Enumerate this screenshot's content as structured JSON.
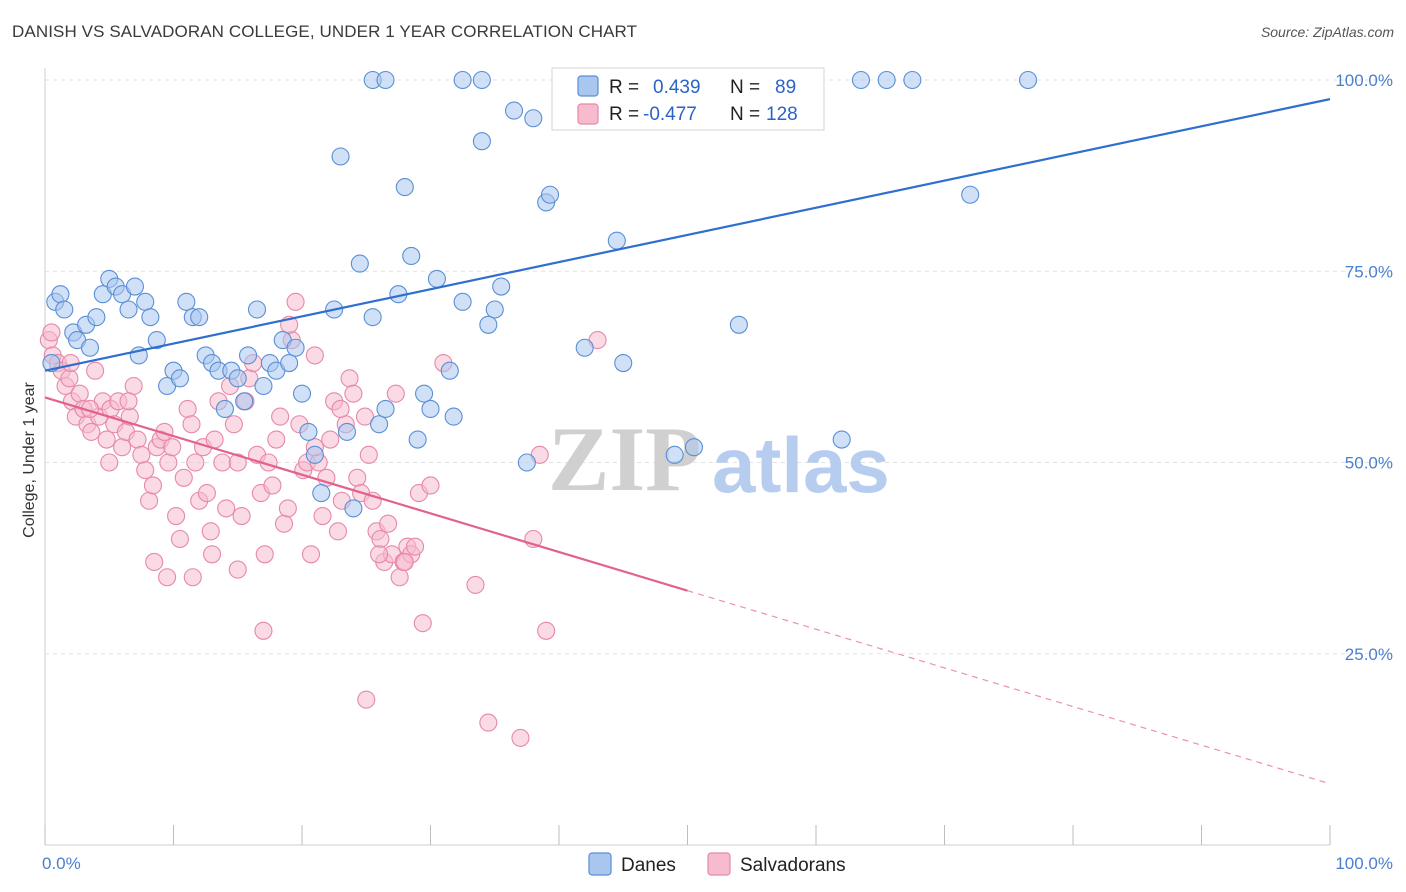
{
  "title": "DANISH VS SALVADORAN COLLEGE, UNDER 1 YEAR CORRELATION CHART",
  "source": "Source: ZipAtlas.com",
  "watermark": {
    "left": "ZIP",
    "right": "atlas"
  },
  "colors": {
    "danes_fill": "#a9c6ee",
    "danes_stroke": "#5a8fd6",
    "danes_line": "#2f6fcf",
    "salv_fill": "#f6bccd",
    "salv_stroke": "#e888a8",
    "salv_line": "#e2628f",
    "grid": "#e2e2e2",
    "tick_label": "#4a7fd0"
  },
  "legend": {
    "rows": [
      {
        "r_label": "R =",
        "r_value": "0.439",
        "n_label": "N =",
        "n_value": "89"
      },
      {
        "r_label": "R =",
        "r_value": "-0.477",
        "n_label": "N =",
        "n_value": "128"
      }
    ]
  },
  "bottom_legend": {
    "danes": "Danes",
    "salvadorans": "Salvadorans"
  },
  "chart_data": {
    "type": "scatter",
    "title": "DANISH VS SALVADORAN COLLEGE, UNDER 1 YEAR CORRELATION CHART",
    "xlabel": "",
    "ylabel": "College, Under 1 year",
    "xlim": [
      0,
      100
    ],
    "ylim": [
      0,
      104
    ],
    "x_tick_labels": [
      "0.0%",
      "100.0%"
    ],
    "y_tick_labels": [
      "25.0%",
      "50.0%",
      "75.0%",
      "100.0%"
    ],
    "y_ticks": [
      25,
      50,
      75,
      100
    ],
    "grid": true,
    "legend_position": "top-center",
    "series": [
      {
        "name": "Danes",
        "R": 0.439,
        "N": 89,
        "trend": {
          "x": [
            0,
            100
          ],
          "y": [
            62.0,
            97.5
          ]
        },
        "points": [
          [
            0.5,
            63
          ],
          [
            0.8,
            71
          ],
          [
            1.2,
            72
          ],
          [
            1.5,
            70
          ],
          [
            2.2,
            67
          ],
          [
            2.5,
            66
          ],
          [
            3.2,
            68
          ],
          [
            3.5,
            65
          ],
          [
            4.0,
            69
          ],
          [
            4.5,
            72
          ],
          [
            5.0,
            74
          ],
          [
            5.5,
            73
          ],
          [
            6.0,
            72
          ],
          [
            6.5,
            70
          ],
          [
            7.0,
            73
          ],
          [
            7.3,
            64
          ],
          [
            7.8,
            71
          ],
          [
            8.2,
            69
          ],
          [
            8.7,
            66
          ],
          [
            9.5,
            60
          ],
          [
            10.0,
            62
          ],
          [
            10.5,
            61
          ],
          [
            11.0,
            71
          ],
          [
            11.5,
            69
          ],
          [
            12.0,
            69
          ],
          [
            12.5,
            64
          ],
          [
            13.0,
            63
          ],
          [
            13.5,
            62
          ],
          [
            14.0,
            57
          ],
          [
            14.5,
            62
          ],
          [
            15.0,
            61
          ],
          [
            15.5,
            58
          ],
          [
            15.8,
            64
          ],
          [
            16.5,
            70
          ],
          [
            17.0,
            60
          ],
          [
            17.5,
            63
          ],
          [
            18.0,
            62
          ],
          [
            18.5,
            66
          ],
          [
            19.0,
            63
          ],
          [
            19.5,
            65
          ],
          [
            20.0,
            59
          ],
          [
            20.5,
            54
          ],
          [
            21.0,
            51
          ],
          [
            21.5,
            46
          ],
          [
            22.5,
            70
          ],
          [
            23.0,
            90
          ],
          [
            23.5,
            54
          ],
          [
            24.0,
            44
          ],
          [
            24.5,
            76
          ],
          [
            25.5,
            69
          ],
          [
            26.0,
            55
          ],
          [
            26.5,
            57
          ],
          [
            27.5,
            72
          ],
          [
            28.0,
            86
          ],
          [
            28.5,
            77
          ],
          [
            29.0,
            53
          ],
          [
            29.5,
            59
          ],
          [
            30.0,
            57
          ],
          [
            30.5,
            74
          ],
          [
            31.5,
            62
          ],
          [
            31.8,
            56
          ],
          [
            32.5,
            71
          ],
          [
            34.0,
            92
          ],
          [
            34.5,
            68
          ],
          [
            35.0,
            70
          ],
          [
            35.5,
            73
          ],
          [
            36.5,
            96
          ],
          [
            37.5,
            50
          ],
          [
            38.0,
            95
          ],
          [
            39.0,
            84
          ],
          [
            39.3,
            85
          ],
          [
            42.0,
            65
          ],
          [
            44.5,
            79
          ],
          [
            45.0,
            63
          ],
          [
            49.0,
            51
          ],
          [
            50.5,
            52
          ],
          [
            54.0,
            68
          ],
          [
            62.0,
            53
          ],
          [
            72.0,
            85
          ],
          [
            25.5,
            100
          ],
          [
            26.5,
            100
          ],
          [
            32.5,
            100
          ],
          [
            34.0,
            100
          ],
          [
            63.5,
            100
          ],
          [
            65.5,
            100
          ],
          [
            67.5,
            100
          ],
          [
            76.5,
            100
          ]
        ]
      },
      {
        "name": "Salvadorans",
        "R": -0.477,
        "N": 128,
        "trend": {
          "x": [
            0,
            100
          ],
          "y": [
            58.5,
            8.0
          ],
          "solid_until_x": 50
        },
        "points": [
          [
            0.3,
            66
          ],
          [
            0.6,
            64
          ],
          [
            1.0,
            63
          ],
          [
            1.3,
            62
          ],
          [
            1.6,
            60
          ],
          [
            1.9,
            61
          ],
          [
            2.1,
            58
          ],
          [
            2.4,
            56
          ],
          [
            2.7,
            59
          ],
          [
            3.0,
            57
          ],
          [
            3.3,
            55
          ],
          [
            3.6,
            54
          ],
          [
            3.9,
            62
          ],
          [
            4.2,
            56
          ],
          [
            4.5,
            58
          ],
          [
            4.8,
            53
          ],
          [
            5.1,
            57
          ],
          [
            5.4,
            55
          ],
          [
            5.7,
            58
          ],
          [
            6.0,
            52
          ],
          [
            6.3,
            54
          ],
          [
            6.6,
            56
          ],
          [
            6.9,
            60
          ],
          [
            7.2,
            53
          ],
          [
            7.5,
            51
          ],
          [
            7.8,
            49
          ],
          [
            8.1,
            45
          ],
          [
            8.4,
            47
          ],
          [
            8.7,
            52
          ],
          [
            9.0,
            53
          ],
          [
            9.3,
            54
          ],
          [
            9.6,
            50
          ],
          [
            9.9,
            52
          ],
          [
            10.2,
            43
          ],
          [
            10.5,
            40
          ],
          [
            10.8,
            48
          ],
          [
            11.1,
            57
          ],
          [
            11.4,
            55
          ],
          [
            11.7,
            50
          ],
          [
            12.0,
            45
          ],
          [
            12.3,
            52
          ],
          [
            12.6,
            46
          ],
          [
            12.9,
            41
          ],
          [
            13.2,
            53
          ],
          [
            13.5,
            58
          ],
          [
            13.8,
            50
          ],
          [
            14.1,
            44
          ],
          [
            14.4,
            60
          ],
          [
            14.7,
            55
          ],
          [
            15.0,
            50
          ],
          [
            15.3,
            43
          ],
          [
            15.6,
            58
          ],
          [
            15.9,
            61
          ],
          [
            16.2,
            63
          ],
          [
            16.5,
            51
          ],
          [
            16.8,
            46
          ],
          [
            17.1,
            38
          ],
          [
            17.4,
            50
          ],
          [
            17.7,
            47
          ],
          [
            18.0,
            53
          ],
          [
            18.3,
            56
          ],
          [
            18.6,
            42
          ],
          [
            18.9,
            44
          ],
          [
            19.2,
            66
          ],
          [
            19.5,
            71
          ],
          [
            19.8,
            55
          ],
          [
            20.1,
            49
          ],
          [
            20.4,
            50
          ],
          [
            20.7,
            38
          ],
          [
            21.0,
            64
          ],
          [
            21.3,
            50
          ],
          [
            21.6,
            43
          ],
          [
            21.9,
            48
          ],
          [
            22.2,
            53
          ],
          [
            22.5,
            58
          ],
          [
            22.8,
            41
          ],
          [
            23.1,
            45
          ],
          [
            23.4,
            55
          ],
          [
            23.7,
            61
          ],
          [
            24.0,
            59
          ],
          [
            24.3,
            48
          ],
          [
            24.6,
            46
          ],
          [
            24.9,
            56
          ],
          [
            25.2,
            51
          ],
          [
            25.5,
            45
          ],
          [
            25.8,
            41
          ],
          [
            26.1,
            40
          ],
          [
            26.4,
            37
          ],
          [
            26.7,
            42
          ],
          [
            27.0,
            38
          ],
          [
            27.3,
            59
          ],
          [
            27.6,
            35
          ],
          [
            27.9,
            37
          ],
          [
            28.2,
            39
          ],
          [
            28.5,
            38
          ],
          [
            28.8,
            39
          ],
          [
            29.1,
            46
          ],
          [
            29.4,
            29
          ],
          [
            30.0,
            47
          ],
          [
            31.0,
            63
          ],
          [
            33.5,
            34
          ],
          [
            34.5,
            16
          ],
          [
            37.0,
            14
          ],
          [
            38.0,
            40
          ],
          [
            38.5,
            51
          ],
          [
            39.0,
            28
          ],
          [
            43.0,
            66
          ],
          [
            0.5,
            67
          ],
          [
            2.0,
            63
          ],
          [
            3.5,
            57
          ],
          [
            5.0,
            50
          ],
          [
            6.5,
            58
          ],
          [
            8.5,
            37
          ],
          [
            9.5,
            35
          ],
          [
            11.5,
            35
          ],
          [
            13.0,
            38
          ],
          [
            15.0,
            36
          ],
          [
            17.0,
            28
          ],
          [
            19.0,
            68
          ],
          [
            21.0,
            52
          ],
          [
            23.0,
            57
          ],
          [
            25.0,
            19
          ],
          [
            26.0,
            38
          ],
          [
            28.0,
            37
          ]
        ]
      }
    ]
  }
}
